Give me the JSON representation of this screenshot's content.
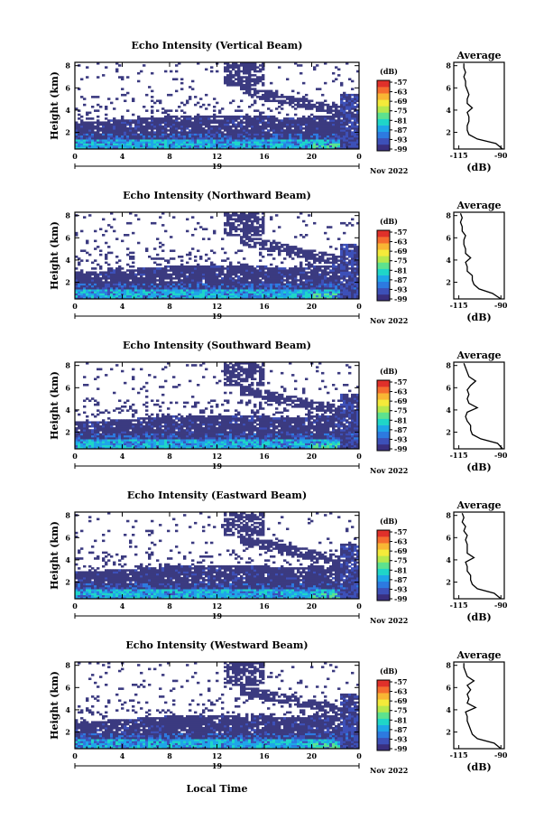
{
  "figure": {
    "xlabel": "Local Time",
    "date_label": "Nov 2022",
    "day_label": "19",
    "colorbar_unit": "(dB)"
  },
  "colorbar": {
    "ticks": [
      "-57",
      "-63",
      "-69",
      "-75",
      "-81",
      "-87",
      "-93",
      "-99"
    ],
    "colors": [
      "#3a2f7f",
      "#3d50b8",
      "#2d7ae0",
      "#1fa6e8",
      "#1fd6c8",
      "#5de28f",
      "#b6e84d",
      "#f4ea3a",
      "#f9b634",
      "#f56d2e",
      "#e0302a"
    ]
  },
  "chart_data": [
    {
      "type": "heatmap",
      "title": "Echo Intensity (Vertical Beam)",
      "ylabel": "Height (km)",
      "x_ticks": [
        "0",
        "4",
        "8",
        "12",
        "16",
        "20",
        "0"
      ],
      "y_ticks": [
        "2",
        "4",
        "6",
        "8"
      ],
      "xlim": [
        0,
        24
      ],
      "ylim": [
        0.5,
        8.3
      ],
      "profile": {
        "title": "Average",
        "xlabel": "(dB)",
        "x_ticks": [
          "-115",
          "-90"
        ],
        "y_ticks": [
          "2",
          "4",
          "6",
          "8"
        ],
        "xlim": [
          -118,
          -88
        ],
        "heights": [
          0.5,
          1.0,
          1.4,
          1.8,
          2.2,
          2.6,
          3.0,
          3.4,
          3.8,
          4.2,
          4.6,
          5.0,
          5.4,
          5.8,
          6.2,
          6.6,
          7.0,
          7.4,
          7.8,
          8.2
        ],
        "values": [
          -89,
          -93,
          -104,
          -109,
          -110,
          -110,
          -109,
          -109,
          -110,
          -107,
          -110,
          -110,
          -109,
          -110,
          -111,
          -111,
          -112,
          -111,
          -112,
          -112
        ]
      }
    },
    {
      "type": "heatmap",
      "title": "Echo Intensity (Northward Beam)",
      "ylabel": "Height (km)",
      "x_ticks": [
        "0",
        "4",
        "8",
        "12",
        "16",
        "20",
        "0"
      ],
      "y_ticks": [
        "2",
        "4",
        "6",
        "8"
      ],
      "xlim": [
        0,
        24
      ],
      "ylim": [
        0.5,
        8.3
      ],
      "profile": {
        "title": "Average",
        "xlabel": "(dB)",
        "x_ticks": [
          "-115",
          "-90"
        ],
        "y_ticks": [
          "2",
          "4",
          "6",
          "8"
        ],
        "xlim": [
          -118,
          -88
        ],
        "heights": [
          0.5,
          1.0,
          1.4,
          1.8,
          2.2,
          2.6,
          3.0,
          3.4,
          3.8,
          4.2,
          4.6,
          5.0,
          5.4,
          5.8,
          6.2,
          6.6,
          7.0,
          7.4,
          7.8,
          8.2
        ],
        "values": [
          -90,
          -95,
          -103,
          -106,
          -107,
          -107,
          -110,
          -110,
          -111,
          -108,
          -111,
          -111,
          -112,
          -112,
          -111,
          -113,
          -113,
          -114,
          -113,
          -114
        ]
      }
    },
    {
      "type": "heatmap",
      "title": "Echo Intensity (Southward Beam)",
      "ylabel": "Height (km)",
      "x_ticks": [
        "0",
        "4",
        "8",
        "12",
        "16",
        "20",
        "0"
      ],
      "y_ticks": [
        "2",
        "4",
        "6",
        "8"
      ],
      "xlim": [
        0,
        24
      ],
      "ylim": [
        0.5,
        8.3
      ],
      "profile": {
        "title": "Average",
        "xlabel": "(dB)",
        "x_ticks": [
          "-115",
          "-90"
        ],
        "y_ticks": [
          "2",
          "4",
          "6",
          "8"
        ],
        "xlim": [
          -118,
          -88
        ],
        "heights": [
          0.5,
          1.0,
          1.4,
          1.8,
          2.2,
          2.6,
          3.0,
          3.4,
          3.8,
          4.2,
          4.6,
          5.0,
          5.4,
          5.8,
          6.2,
          6.6,
          7.0,
          7.4,
          7.8,
          8.2
        ],
        "values": [
          -89,
          -92,
          -102,
          -107,
          -108,
          -108,
          -110,
          -111,
          -110,
          -104,
          -109,
          -110,
          -109,
          -110,
          -108,
          -105,
          -109,
          -110,
          -111,
          -112
        ]
      }
    },
    {
      "type": "heatmap",
      "title": "Echo Intensity (Eastward Beam)",
      "ylabel": "Height (km)",
      "x_ticks": [
        "0",
        "4",
        "8",
        "12",
        "16",
        "20",
        "0"
      ],
      "y_ticks": [
        "2",
        "4",
        "6",
        "8"
      ],
      "xlim": [
        0,
        24
      ],
      "ylim": [
        0.5,
        8.3
      ],
      "profile": {
        "title": "Average",
        "xlabel": "(dB)",
        "x_ticks": [
          "-115",
          "-90"
        ],
        "y_ticks": [
          "2",
          "4",
          "6",
          "8"
        ],
        "xlim": [
          -118,
          -88
        ],
        "heights": [
          0.5,
          1.0,
          1.4,
          1.8,
          2.2,
          2.6,
          3.0,
          3.4,
          3.8,
          4.2,
          4.6,
          5.0,
          5.4,
          5.8,
          6.2,
          6.6,
          7.0,
          7.4,
          7.8,
          8.2
        ],
        "values": [
          -90,
          -94,
          -104,
          -107,
          -108,
          -108,
          -110,
          -110,
          -111,
          -106,
          -110,
          -110,
          -110,
          -111,
          -110,
          -112,
          -111,
          -113,
          -112,
          -113
        ]
      }
    },
    {
      "type": "heatmap",
      "title": "Echo Intensity (Westward Beam)",
      "ylabel": "Height (km)",
      "x_ticks": [
        "0",
        "4",
        "8",
        "12",
        "16",
        "20",
        "0"
      ],
      "y_ticks": [
        "2",
        "4",
        "6",
        "8"
      ],
      "xlim": [
        0,
        24
      ],
      "ylim": [
        0.5,
        8.3
      ],
      "profile": {
        "title": "Average",
        "xlabel": "(dB)",
        "x_ticks": [
          "-115",
          "-90"
        ],
        "y_ticks": [
          "2",
          "4",
          "6",
          "8"
        ],
        "xlim": [
          -118,
          -88
        ],
        "heights": [
          0.5,
          1.0,
          1.4,
          1.8,
          2.2,
          2.6,
          3.0,
          3.4,
          3.8,
          4.2,
          4.6,
          5.0,
          5.4,
          5.8,
          6.2,
          6.6,
          7.0,
          7.4,
          7.8,
          8.2
        ],
        "values": [
          -90,
          -94,
          -104,
          -107,
          -108,
          -109,
          -110,
          -110,
          -111,
          -105,
          -110,
          -109,
          -110,
          -108,
          -110,
          -106,
          -110,
          -111,
          -112,
          -112
        ]
      }
    }
  ]
}
